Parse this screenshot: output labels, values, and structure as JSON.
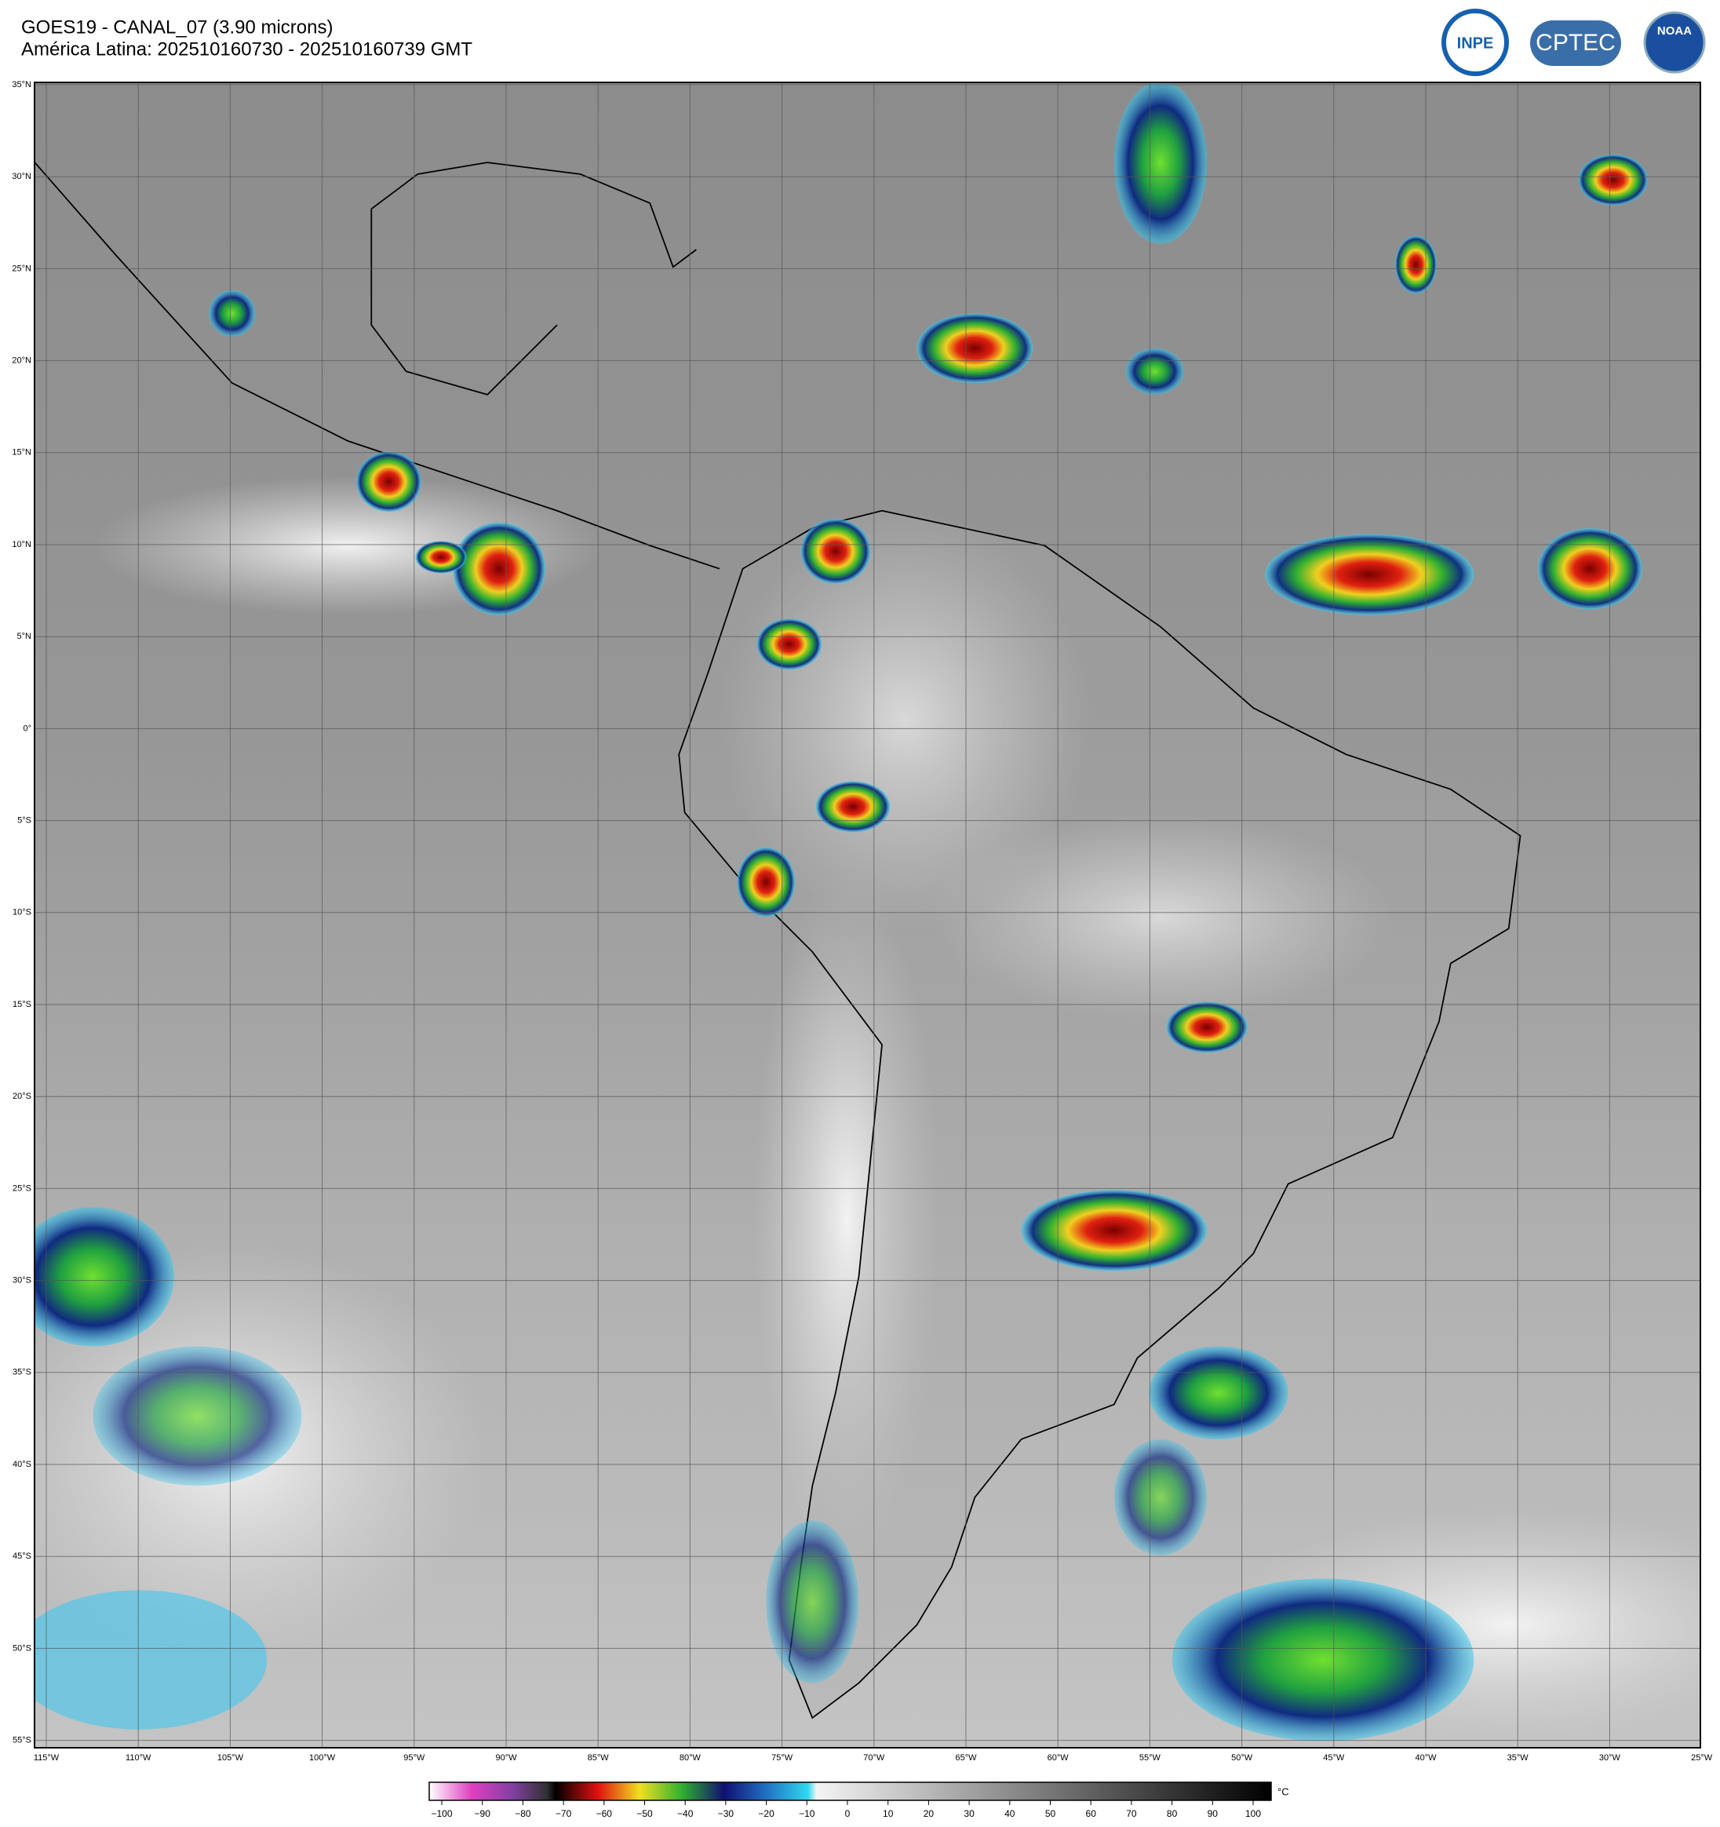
{
  "header": {
    "title": "GOES19 - CANAL_07 (3.90 microns)",
    "subtitle": "América Latina: 202510160730 - 202510160739 GMT",
    "logos": [
      "INPE",
      "CPTEC",
      "NOAA"
    ]
  },
  "map": {
    "lat_labels": [
      "35°N",
      "30°N",
      "25°N",
      "20°N",
      "15°N",
      "10°N",
      "5°N",
      "0°",
      "5°S",
      "10°S",
      "15°S",
      "20°S",
      "25°S",
      "30°S",
      "35°S",
      "40°S",
      "45°S",
      "50°S",
      "55°S"
    ],
    "lon_labels": [
      "115°W",
      "110°W",
      "105°W",
      "100°W",
      "95°W",
      "90°W",
      "85°W",
      "80°W",
      "75°W",
      "70°W",
      "65°W",
      "60°W",
      "55°W",
      "50°W",
      "45°W",
      "40°W",
      "35°W",
      "30°W",
      "25°W"
    ]
  },
  "colorbar": {
    "unit": "°C",
    "ticks": [
      {
        "value": -100,
        "label": "−100"
      },
      {
        "value": -90,
        "label": "−90"
      },
      {
        "value": -80,
        "label": "−80"
      },
      {
        "value": -70,
        "label": "−70"
      },
      {
        "value": -60,
        "label": "−60"
      },
      {
        "value": -50,
        "label": "−50"
      },
      {
        "value": -40,
        "label": "−40"
      },
      {
        "value": -30,
        "label": "−30"
      },
      {
        "value": -20,
        "label": "−20"
      },
      {
        "value": -10,
        "label": "−10"
      },
      0,
      10,
      20,
      30,
      40,
      50,
      60,
      70,
      80,
      90,
      100
    ]
  }
}
